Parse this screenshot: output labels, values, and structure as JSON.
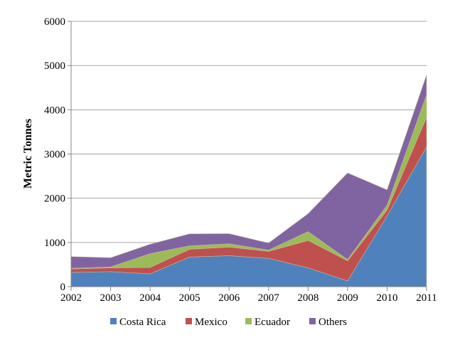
{
  "chart_data": {
    "type": "area",
    "stacked": true,
    "title": "",
    "xlabel": "",
    "ylabel": "Metric Tonnes",
    "x": [
      2002,
      2003,
      2004,
      2005,
      2006,
      2007,
      2008,
      2009,
      2010,
      2011
    ],
    "ylim": [
      0,
      6000
    ],
    "yticks": [
      0,
      1000,
      2000,
      3000,
      4000,
      5000,
      6000
    ],
    "grid": true,
    "legend_position": "bottom",
    "series": [
      {
        "name": "Costa Rica",
        "color": "#4f81bd",
        "values": [
          320,
          340,
          290,
          670,
          700,
          640,
          425,
          130,
          1600,
          3160
        ]
      },
      {
        "name": "Mexico",
        "color": "#c0504d",
        "values": [
          80,
          85,
          145,
          175,
          195,
          160,
          620,
          455,
          130,
          670
        ]
      },
      {
        "name": "Ecuador",
        "color": "#9bbb59",
        "values": [
          15,
          20,
          310,
          80,
          75,
          27,
          200,
          28,
          110,
          510
        ]
      },
      {
        "name": "Others",
        "color": "#8064a2",
        "values": [
          265,
          210,
          215,
          270,
          230,
          160,
          405,
          1960,
          350,
          450
        ]
      }
    ]
  }
}
